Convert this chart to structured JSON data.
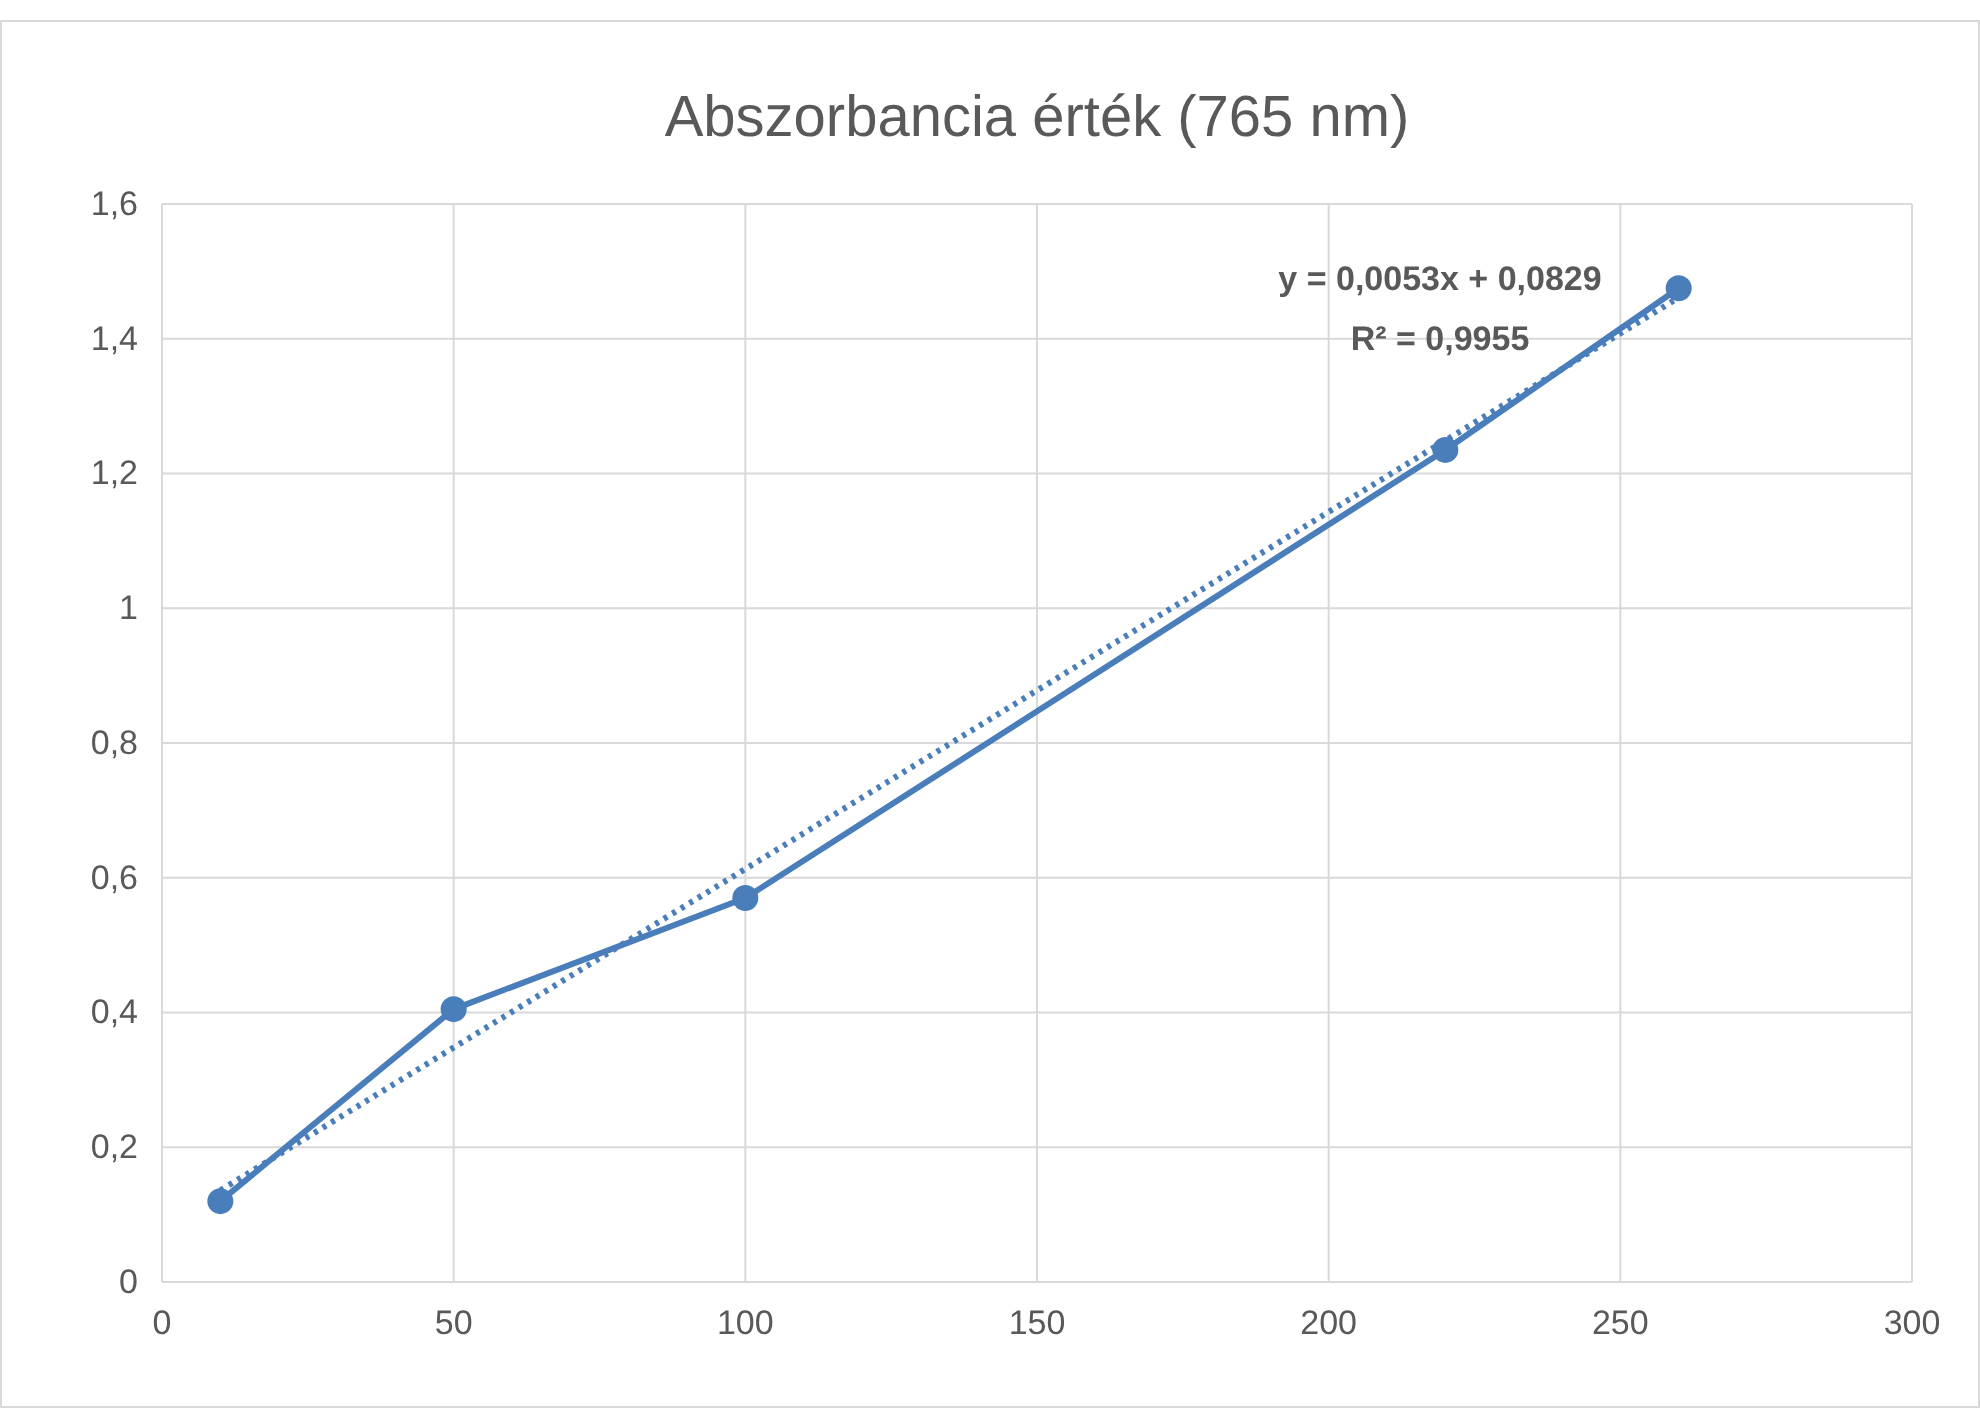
{
  "chart_data": {
    "type": "line",
    "title": "Abszorbancia érték (765 nm)",
    "x": [
      10,
      50,
      100,
      220,
      260
    ],
    "series": [
      {
        "color": "#4a7ebb",
        "values": [
          0.12,
          0.405,
          0.57,
          1.235,
          1.475
        ],
        "marker": "circle",
        "line_style": "solid"
      },
      {
        "type": "line",
        "color": "#4a7ebb",
        "x": [
          10,
          260
        ],
        "values": [
          0.136,
          1.461
        ],
        "marker": "none",
        "line_style": "dotted"
      }
    ],
    "xlim": [
      0,
      300
    ],
    "xticks": [
      0,
      50,
      100,
      150,
      200,
      250,
      300
    ],
    "ylim": [
      0,
      1.6
    ],
    "yticks": [
      0,
      {
        "value": 0.2,
        "label": "0,2"
      },
      {
        "value": 0.4,
        "label": "0,4"
      },
      {
        "value": 0.6,
        "label": "0,6"
      },
      {
        "value": 0.8,
        "label": "0,8"
      },
      1,
      {
        "value": 1.2,
        "label": "1,2"
      },
      {
        "value": 1.4,
        "label": "1,4"
      },
      {
        "value": 1.6,
        "label": "1,6"
      }
    ],
    "grid": true,
    "annotations": [
      "y = 0,0053x + 0,0829",
      "R² = 0,9955"
    ]
  }
}
